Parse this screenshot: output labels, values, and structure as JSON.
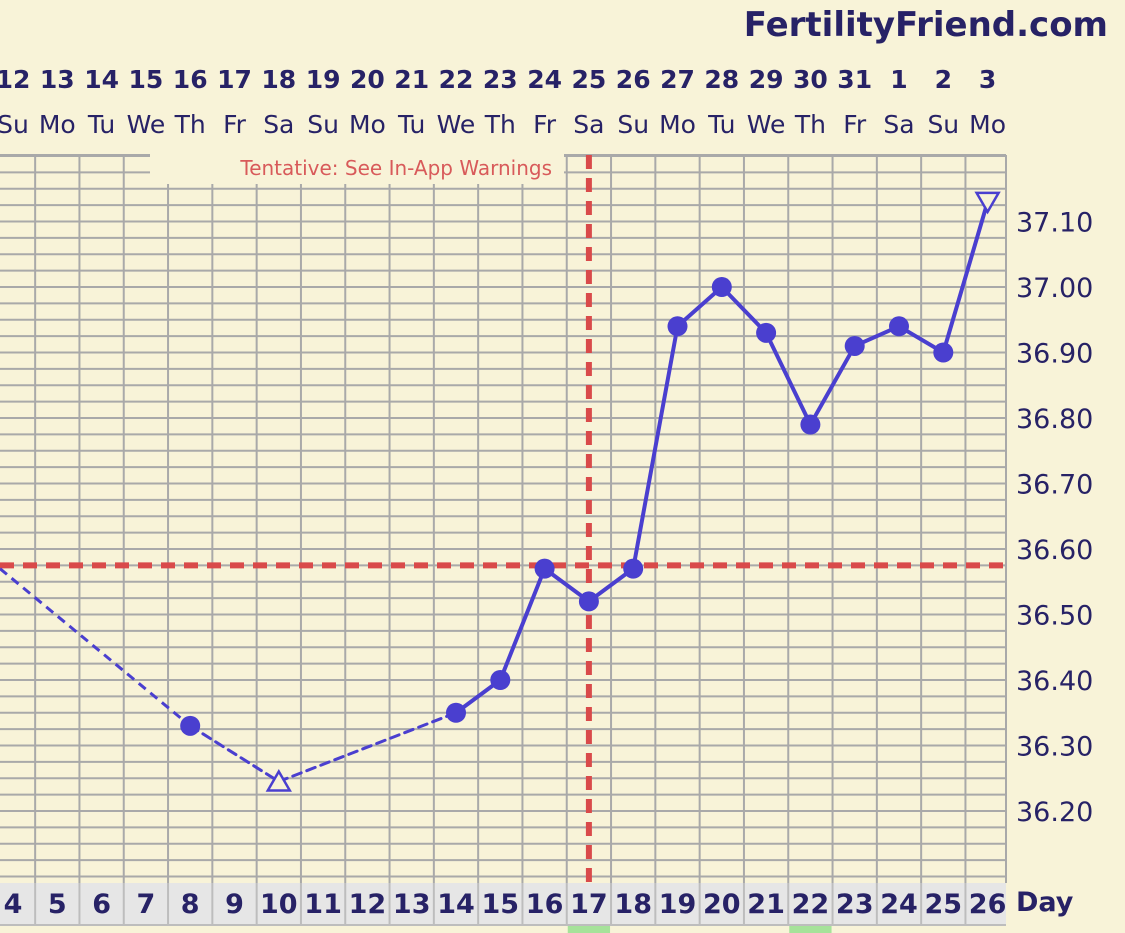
{
  "brand": "FertilityFriend.com",
  "warning": "Tentative: See In-App Warnings",
  "chart_data": {
    "type": "line",
    "dates": [
      "12",
      "13",
      "14",
      "15",
      "16",
      "17",
      "18",
      "19",
      "20",
      "21",
      "22",
      "23",
      "24",
      "25",
      "26",
      "27",
      "28",
      "29",
      "30",
      "31",
      "1",
      "2",
      "3"
    ],
    "weekdays": [
      "Su",
      "Mo",
      "Tu",
      "We",
      "Th",
      "Fr",
      "Sa",
      "Su",
      "Mo",
      "Tu",
      "We",
      "Th",
      "Fr",
      "Sa",
      "Su",
      "Mo",
      "Tu",
      "We",
      "Th",
      "Fr",
      "Sa",
      "Su",
      "Mo"
    ],
    "cycle_days": [
      4,
      5,
      6,
      7,
      8,
      9,
      10,
      11,
      12,
      13,
      14,
      15,
      16,
      17,
      18,
      19,
      20,
      21,
      22,
      23,
      24,
      25,
      26
    ],
    "xlabel": "Day",
    "ylim": [
      36.1,
      37.2
    ],
    "yticks": [
      "36.20",
      "36.30",
      "36.40",
      "36.50",
      "36.60",
      "36.70",
      "36.80",
      "36.90",
      "37.00",
      "37.10"
    ],
    "coverline": 36.575,
    "ovulation_day": 17,
    "highlighted_days": [
      17,
      22
    ],
    "series": [
      {
        "points": [
          {
            "day": 8,
            "temp": 36.33
          },
          {
            "day": 10,
            "temp": 36.245,
            "marker": "open-triangle-up"
          },
          {
            "day": 14,
            "temp": 36.35
          },
          {
            "day": 15,
            "temp": 36.4
          },
          {
            "day": 16,
            "temp": 36.57
          },
          {
            "day": 17,
            "temp": 36.52
          },
          {
            "day": 18,
            "temp": 36.57
          },
          {
            "day": 19,
            "temp": 36.94
          },
          {
            "day": 20,
            "temp": 37.0
          },
          {
            "day": 21,
            "temp": 36.93
          },
          {
            "day": 22,
            "temp": 36.79
          },
          {
            "day": 23,
            "temp": 36.91
          },
          {
            "day": 24,
            "temp": 36.94
          },
          {
            "day": 25,
            "temp": 36.9
          },
          {
            "day": 26,
            "temp": 37.13,
            "marker": "open-triangle-down"
          }
        ],
        "dashed_segments": [
          [
            8,
            10
          ],
          [
            10,
            14
          ]
        ],
        "edge_entry_temp": 36.57
      }
    ],
    "colors": {
      "background": "#f8f3d8",
      "line": "#4a3fcf",
      "coverline": "#d94a4a",
      "grid": "#a9a9a9",
      "text": "#272266",
      "highlight": "#a6e29a"
    }
  }
}
